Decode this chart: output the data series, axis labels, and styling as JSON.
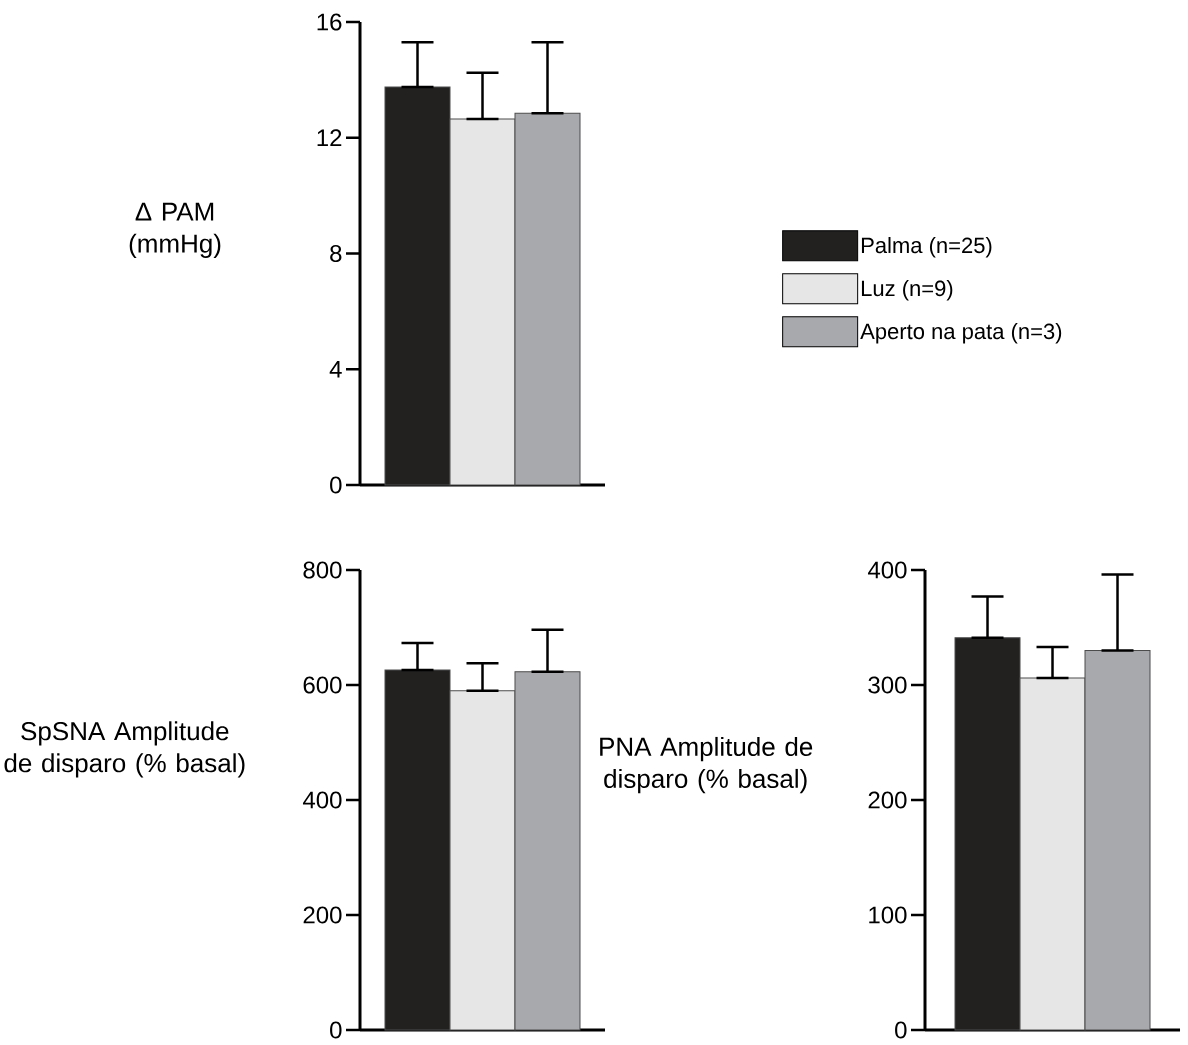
{
  "chart_data": [
    {
      "type": "bar",
      "ylabel": "Δ PAM (mmHg)",
      "categories": [
        null
      ],
      "ylim": [
        0,
        16
      ],
      "yticks": [
        0,
        4,
        8,
        12,
        16
      ],
      "legend": "right",
      "series": [
        {
          "name": "Palma (n=25)",
          "color": "#222120",
          "values": [
            13.75
          ],
          "errors": [
            [
              13.75,
              15.3
            ]
          ]
        },
        {
          "name": "Luz (n=9)",
          "color": "#e6e6e6",
          "values": [
            12.65
          ],
          "errors": [
            [
              12.65,
              14.25
            ]
          ]
        },
        {
          "name": "Aperto na pata (n=3)",
          "color": "#a8a9ac",
          "values": [
            12.85
          ],
          "errors": [
            [
              12.85,
              15.3
            ]
          ]
        }
      ]
    },
    {
      "type": "bar",
      "ylabel": "SpSNA Amplitude de disparo (% basal)",
      "categories": [
        null
      ],
      "ylim": [
        0,
        800
      ],
      "yticks": [
        0,
        200,
        400,
        600,
        800
      ],
      "series": [
        {
          "color": "#222120",
          "values": [
            626
          ],
          "errors": [
            [
              626,
              673
            ]
          ]
        },
        {
          "color": "#e6e6e6",
          "values": [
            590
          ],
          "errors": [
            [
              590,
              638
            ]
          ]
        },
        {
          "color": "#a8a9ac",
          "values": [
            623
          ],
          "errors": [
            [
              623,
              696
            ]
          ]
        }
      ]
    },
    {
      "type": "bar",
      "ylabel": "PNA Amplitude de disparo (% basal)",
      "categories": [
        null
      ],
      "ylim": [
        0,
        400
      ],
      "yticks": [
        0,
        100,
        200,
        300,
        400
      ],
      "series": [
        {
          "color": "#222120",
          "values": [
            341
          ],
          "errors": [
            [
              341,
              377
            ]
          ]
        },
        {
          "color": "#e6e6e6",
          "values": [
            306
          ],
          "errors": [
            [
              306,
              333
            ]
          ]
        },
        {
          "color": "#a8a9ac",
          "values": [
            330
          ],
          "errors": [
            [
              330,
              396
            ]
          ]
        }
      ]
    }
  ]
}
